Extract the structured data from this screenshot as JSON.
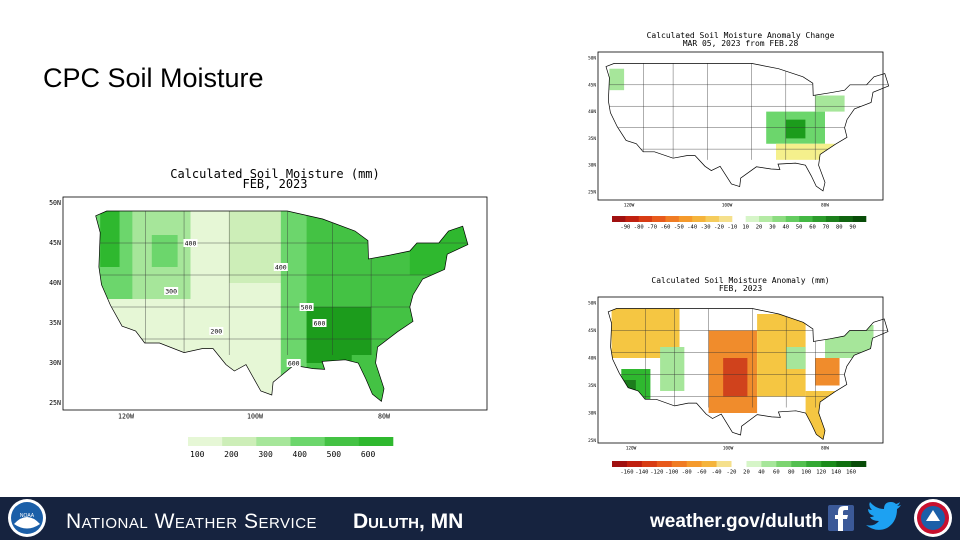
{
  "slide": {
    "title": "CPC Soil Moisture"
  },
  "maps": [
    {
      "title": [
        "Calculated Soil Moisture (mm)",
        "FEB, 2023"
      ],
      "lat_labels": [
        "50N",
        "45N",
        "40N",
        "35N",
        "30N",
        "25N"
      ],
      "lon_labels": [
        "120W",
        "100W",
        "80W"
      ],
      "legend": [
        "100",
        "200",
        "300",
        "400",
        "500",
        "600"
      ],
      "contour_labels": [
        "400",
        "300",
        "200",
        "400",
        "500",
        "600",
        "600"
      ]
    },
    {
      "title": [
        "Calculated Soil Moisture Anomaly Change",
        "MAR 05, 2023 from FEB.28"
      ],
      "lat_labels": [
        "50N",
        "45N",
        "40N",
        "35N",
        "30N",
        "25N"
      ],
      "lon_labels": [
        "120W",
        "100W",
        "80W"
      ],
      "legend": [
        "-90",
        "-80",
        "-70",
        "-60",
        "-50",
        "-40",
        "-30",
        "-20",
        "-10",
        "10",
        "20",
        "30",
        "40",
        "50",
        "60",
        "70",
        "80",
        "90"
      ]
    },
    {
      "title": [
        "Calculated Soil Moisture Anomaly (mm)",
        "FEB, 2023"
      ],
      "lat_labels": [
        "50N",
        "45N",
        "40N",
        "35N",
        "30N",
        "25N"
      ],
      "lon_labels": [
        "120W",
        "100W",
        "80W"
      ],
      "legend": [
        "-160",
        "-140",
        "-120",
        "-100",
        "-80",
        "-60",
        "-40",
        "-20",
        "20",
        "40",
        "60",
        "80",
        "100",
        "120",
        "140",
        "160"
      ]
    }
  ],
  "footer": {
    "logo": "NOAA",
    "agency": "National Weather Service",
    "office": "Duluth, MN",
    "url": "weather.gov/duluth"
  }
}
